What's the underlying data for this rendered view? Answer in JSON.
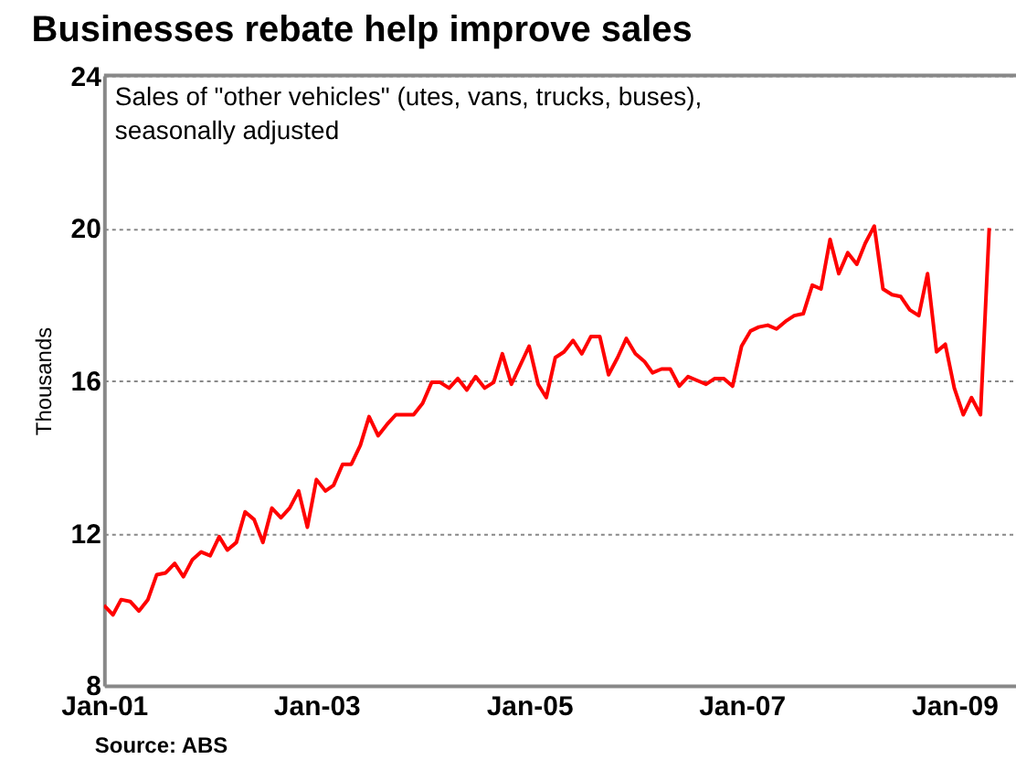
{
  "chart_data": {
    "type": "line",
    "title": "Businesses rebate help improve sales",
    "subtitle": "Sales of \"other vehicles\" (utes, vans, trucks, buses), seasonally adjusted",
    "ylabel": "Thousands",
    "annotations": [
      "Source: ABS"
    ],
    "x": [
      "2001-01",
      "2001-02",
      "2001-03",
      "2001-04",
      "2001-05",
      "2001-06",
      "2001-07",
      "2001-08",
      "2001-09",
      "2001-10",
      "2001-11",
      "2001-12",
      "2002-01",
      "2002-02",
      "2002-03",
      "2002-04",
      "2002-05",
      "2002-06",
      "2002-07",
      "2002-08",
      "2002-09",
      "2002-10",
      "2002-11",
      "2002-12",
      "2003-01",
      "2003-02",
      "2003-03",
      "2003-04",
      "2003-05",
      "2003-06",
      "2003-07",
      "2003-08",
      "2003-09",
      "2003-10",
      "2003-12",
      "2004-01",
      "2004-02",
      "2004-03",
      "2004-04",
      "2004-05",
      "2004-06",
      "2004-07",
      "2004-08",
      "2004-09",
      "2004-10",
      "2004-11",
      "2005-01",
      "2005-02",
      "2005-03",
      "2005-04",
      "2005-05",
      "2005-06",
      "2005-07",
      "2005-08",
      "2005-09",
      "2005-10",
      "2005-11",
      "2005-12",
      "2006-01",
      "2006-02",
      "2006-03",
      "2006-04",
      "2006-05",
      "2006-06",
      "2006-07",
      "2006-08",
      "2006-09",
      "2006-10",
      "2006-11",
      "2006-12",
      "2007-01",
      "2007-02",
      "2007-03",
      "2007-04",
      "2007-05",
      "2007-06",
      "2007-07",
      "2007-08",
      "2007-09",
      "2007-10",
      "2007-11",
      "2007-12",
      "2008-01",
      "2008-02",
      "2008-03",
      "2008-04",
      "2008-05",
      "2008-06",
      "2008-07",
      "2008-08",
      "2008-09",
      "2008-10",
      "2008-11",
      "2008-12",
      "2009-01",
      "2009-02",
      "2009-03",
      "2009-04",
      "2009-05"
    ],
    "series": [
      {
        "color": "#ff0000",
        "values": [
          10.1,
          9.85,
          10.25,
          10.2,
          9.95,
          10.25,
          10.9,
          10.95,
          11.2,
          10.85,
          11.3,
          11.5,
          11.4,
          11.9,
          11.55,
          11.75,
          12.55,
          12.35,
          11.75,
          12.65,
          12.4,
          12.65,
          13.1,
          12.15,
          13.4,
          13.1,
          13.25,
          13.8,
          13.8,
          14.3,
          15.05,
          14.55,
          14.85,
          15.1,
          15.1,
          15.4,
          15.95,
          15.95,
          15.8,
          16.05,
          15.75,
          16.1,
          15.8,
          15.95,
          16.7,
          15.9,
          16.9,
          15.9,
          15.55,
          16.6,
          16.75,
          17.05,
          16.7,
          17.15,
          17.15,
          16.15,
          16.6,
          17.1,
          16.7,
          16.5,
          16.2,
          16.3,
          16.3,
          15.85,
          16.1,
          16.0,
          15.9,
          16.05,
          16.05,
          15.85,
          16.9,
          17.3,
          17.4,
          17.45,
          17.35,
          17.55,
          17.7,
          17.75,
          18.5,
          18.4,
          19.7,
          18.8,
          19.35,
          19.05,
          19.6,
          20.05,
          18.4,
          18.25,
          18.2,
          17.85,
          17.7,
          18.8,
          16.75,
          16.95,
          15.8,
          15.1,
          15.55,
          15.1,
          20.0
        ]
      }
    ],
    "xlim": [
      "2001-01",
      "2009-08"
    ],
    "xticks": [
      {
        "value": "2001-01",
        "label": "Jan-01"
      },
      {
        "value": "2003-01",
        "label": "Jan-03"
      },
      {
        "value": "2005-01",
        "label": "Jan-05"
      },
      {
        "value": "2007-01",
        "label": "Jan-07"
      },
      {
        "value": "2009-01",
        "label": "Jan-09"
      }
    ],
    "ylim": [
      8,
      24
    ],
    "yticks": [
      8,
      12,
      16,
      20,
      24
    ],
    "grid": "y",
    "marker": "none",
    "line_style": "solid"
  }
}
